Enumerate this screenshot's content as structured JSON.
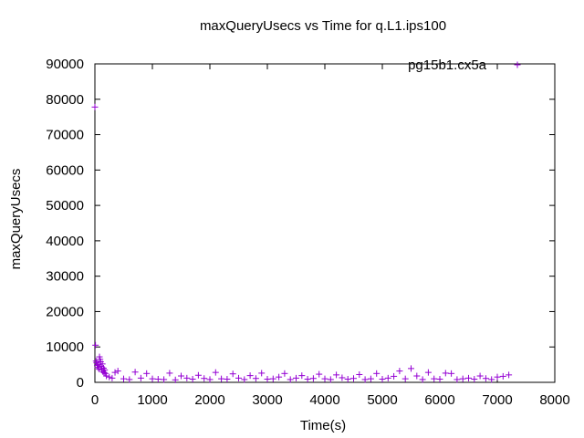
{
  "chart_data": {
    "type": "scatter",
    "title": "maxQueryUsecs vs Time for q.L1.ips100",
    "xlabel": "Time(s)",
    "ylabel": "maxQueryUsecs",
    "xlim": [
      0,
      8000
    ],
    "ylim": [
      0,
      90000
    ],
    "xticks": [
      "0",
      "1000",
      "2000",
      "3000",
      "4000",
      "5000",
      "6000",
      "7000",
      "8000"
    ],
    "yticks": [
      "0",
      "10000",
      "20000",
      "30000",
      "40000",
      "50000",
      "60000",
      "70000",
      "80000",
      "90000"
    ],
    "grid": false,
    "legend_position": "top-right",
    "series": [
      {
        "name": "pg15b1.cx5a",
        "color": "#9400d3",
        "x": [
          0,
          10,
          20,
          30,
          40,
          50,
          60,
          70,
          80,
          90,
          100,
          110,
          120,
          130,
          140,
          150,
          160,
          170,
          180,
          200,
          250,
          300,
          350,
          400,
          500,
          600,
          700,
          800,
          900,
          1000,
          1100,
          1200,
          1300,
          1400,
          1500,
          1600,
          1700,
          1800,
          1900,
          2000,
          2100,
          2200,
          2300,
          2400,
          2500,
          2600,
          2700,
          2800,
          2900,
          3000,
          3100,
          3200,
          3300,
          3400,
          3500,
          3600,
          3700,
          3800,
          3900,
          4000,
          4100,
          4200,
          4300,
          4400,
          4500,
          4600,
          4700,
          4800,
          4900,
          5000,
          5100,
          5200,
          5300,
          5400,
          5500,
          5600,
          5700,
          5800,
          5900,
          6000,
          6100,
          6200,
          6300,
          6400,
          6500,
          6600,
          6700,
          6800,
          6900,
          7000,
          7100,
          7200
        ],
        "y": [
          77800,
          10500,
          6000,
          5500,
          4800,
          4200,
          5000,
          3800,
          7200,
          6500,
          5800,
          4500,
          3500,
          5200,
          3000,
          4000,
          2800,
          3500,
          2500,
          1800,
          1500,
          1200,
          2800,
          3200,
          1000,
          800,
          2900,
          1200,
          2500,
          1000,
          900,
          800,
          2600,
          700,
          1800,
          1200,
          900,
          2000,
          1100,
          800,
          2800,
          1000,
          900,
          2400,
          1200,
          800,
          1900,
          1100,
          2600,
          900,
          1000,
          1500,
          2500,
          800,
          1200,
          1900,
          900,
          1100,
          2300,
          1000,
          800,
          2100,
          1300,
          900,
          1100,
          2200,
          800,
          1000,
          2500,
          900,
          1200,
          1700,
          3200,
          1000,
          3900,
          1800,
          800,
          2800,
          1000,
          900,
          2600,
          2500,
          800,
          1000,
          1200,
          900,
          1800,
          1100,
          800,
          1500,
          1700,
          2100
        ]
      }
    ]
  }
}
